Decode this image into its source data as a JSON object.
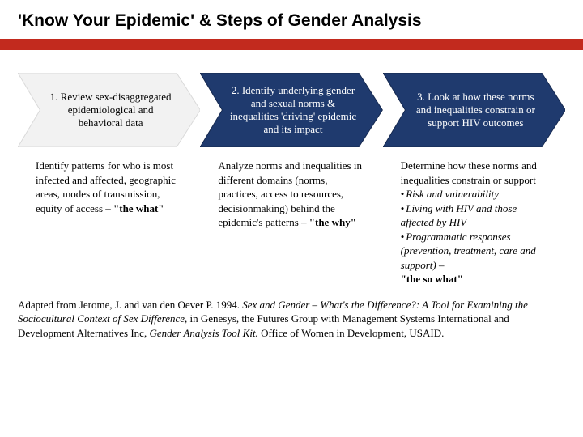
{
  "title": "'Know Your Epidemic' & Steps of Gender Analysis",
  "colors": {
    "redbar": "#c22a1e",
    "chev_light_fill": "#f2f2f2",
    "chev_light_stroke": "#d9d9d9",
    "chev_dark_fill": "#1f3a6e",
    "chev_dark_stroke": "#16294f"
  },
  "steps": [
    {
      "label": "1. Review sex-disaggregated epidemiological and behavioral data",
      "style": "light",
      "body_html": "Identify patterns for who is most infected and affected, geographic areas, modes of transmission, equity of access – <b>\"the what\"</b>"
    },
    {
      "label": "2. Identify underlying gender and sexual norms & inequalities 'driving' epidemic and its impact",
      "style": "dark",
      "body_html": "Analyze norms and inequalities in different domains (norms, practices, access to resources, decisionmaking) behind the epidemic's patterns – <b>\"the why\"</b>"
    },
    {
      "label": "3. Look at how these norms and inequalities constrain or support HIV outcomes",
      "style": "dark",
      "body_html": "Determine how these norms and inequalities constrain or support<ul><li>Risk and vulnerability</li><li>Living with HIV and those affected by HIV</li><li>Programmatic responses (prevention, treatment, care and support) –</li></ul><b>\"the so what\"</b>"
    }
  ],
  "source_html": "Adapted from Jerome, J. and van den Oever P. 1994. <span class='i'>Sex and Gender – What's the Difference?: A Tool for Examining the Sociocultural Context of Sex Difference,</span> in Genesys, the Futures Group with Management Systems International and Development Alternatives Inc, <span class='i'>Gender Analysis Tool Kit.</span> Office of Women in Development, USAID."
}
